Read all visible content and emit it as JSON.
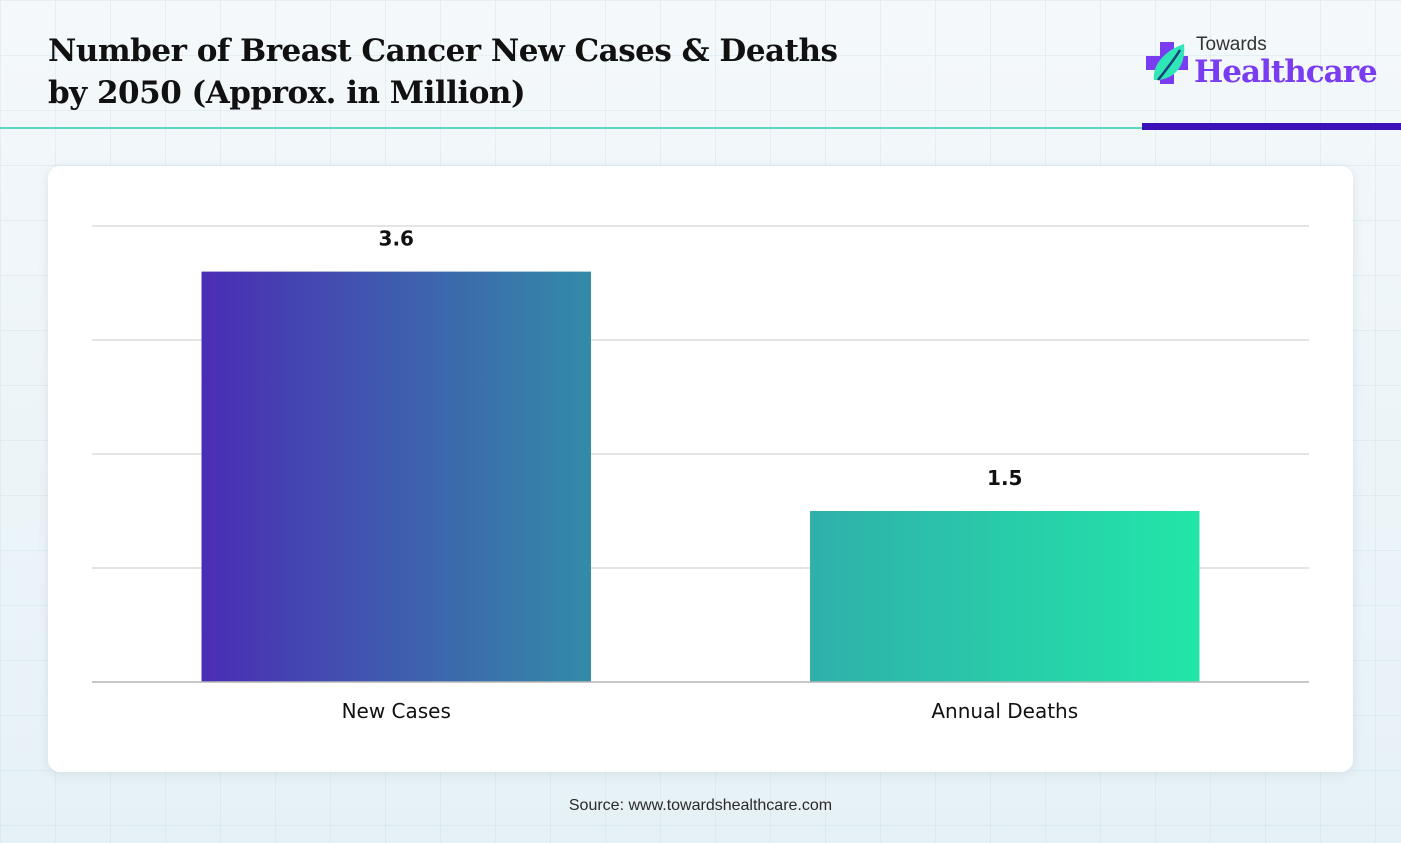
{
  "header": {
    "title_lines": [
      "Number of Breast Cancer New Cases & Deaths",
      "by 2050 (Approx. in Million)"
    ]
  },
  "logo": {
    "icon": "medical-cross-leaf-icon",
    "line1": "Towards",
    "line2": "Healthcare",
    "colors": {
      "cross": "#7a3cf0",
      "leaf": "#2ee6b6",
      "text": "#7a3cf0"
    }
  },
  "colors": {
    "divider_left": "#5ed9c0",
    "divider_right": "#3b12b8"
  },
  "chart_data": {
    "type": "bar",
    "title": "Number of Breast Cancer New Cases & Deaths by 2050 (Approx. in Million)",
    "categories": [
      "New Cases",
      "Annual Deaths"
    ],
    "values": [
      3.6,
      1.5
    ],
    "data_labels": [
      "3.6",
      "1.5"
    ],
    "xlabel": "",
    "ylabel": "",
    "ylim": [
      0,
      4
    ],
    "grid": true,
    "y_tick_labels_shown": false,
    "legend": "none",
    "bar_colors": [
      {
        "from": "#4a2db5",
        "to": "#338ba8"
      },
      {
        "from": "#2fb0ab",
        "to": "#22e6a8"
      }
    ]
  },
  "footer": {
    "source": "Source: www.towardshealthcare.com"
  }
}
